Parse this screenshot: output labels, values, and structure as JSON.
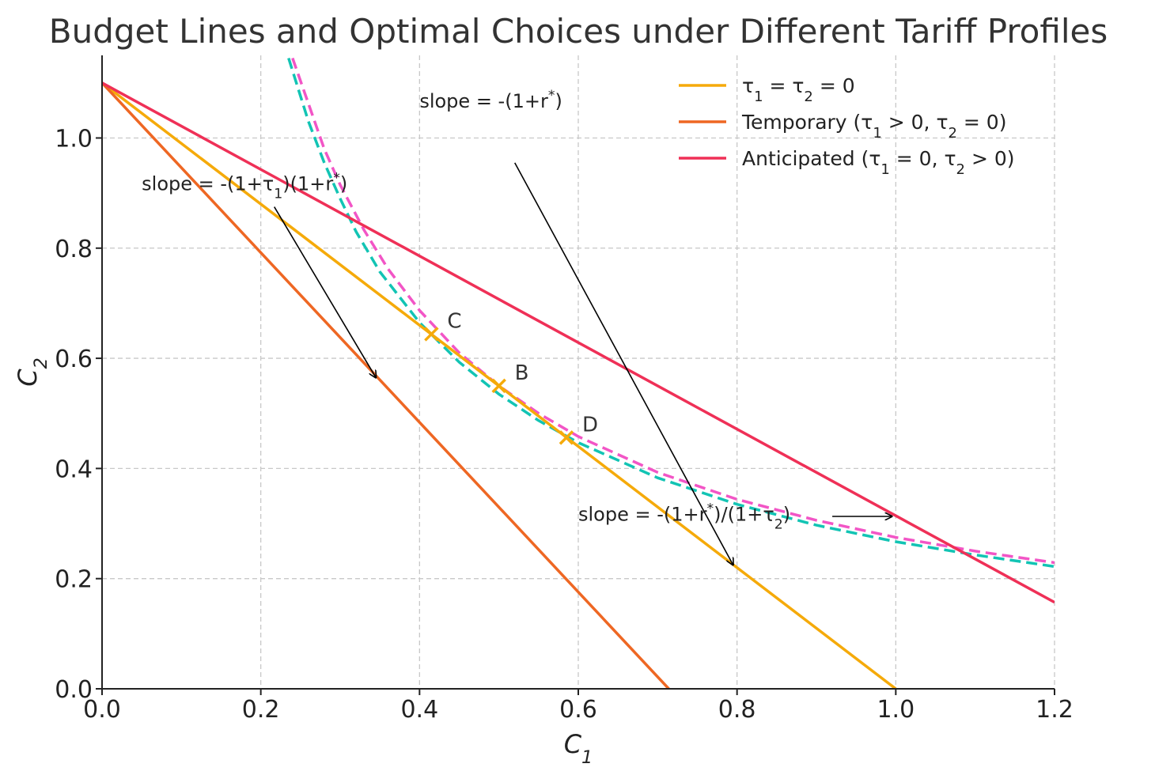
{
  "chart_data": {
    "type": "line",
    "title": "Budget Lines and Optimal Choices under Different Tariff Profiles",
    "xlabel": "C",
    "xlabel_sub": "1",
    "ylabel": "C",
    "ylabel_sub": "2",
    "xlim": [
      0,
      1.2
    ],
    "ylim": [
      0,
      1.15
    ],
    "xticks": [
      0.0,
      0.2,
      0.4,
      0.6,
      0.8,
      1.0,
      1.2
    ],
    "yticks": [
      0.0,
      0.2,
      0.4,
      0.6,
      0.8,
      1.0
    ],
    "xtick_labels": [
      "0.0",
      "0.2",
      "0.4",
      "0.6",
      "0.8",
      "1.0",
      "1.2"
    ],
    "ytick_labels": [
      "0.0",
      "0.2",
      "0.4",
      "0.6",
      "0.8",
      "1.0"
    ],
    "grid": true,
    "legend_position": "top-right",
    "series": [
      {
        "name": "τ₁ = τ₂ = 0",
        "legend_parts": [
          [
            "τ",
            ""
          ],
          [
            "1",
            "sub"
          ],
          [
            " = τ",
            ""
          ],
          [
            "2",
            "sub"
          ],
          [
            " = 0",
            ""
          ]
        ],
        "kind": "line",
        "color": "#f5aa0a",
        "x": [
          0.0,
          1.0
        ],
        "y": [
          1.1,
          0.0
        ]
      },
      {
        "name": "Temporary (τ₁ > 0, τ₂ = 0)",
        "legend_parts": [
          [
            "Temporary (τ",
            ""
          ],
          [
            "1",
            "sub"
          ],
          [
            " > 0, τ",
            ""
          ],
          [
            "2",
            "sub"
          ],
          [
            " = 0)",
            ""
          ]
        ],
        "kind": "line",
        "color": "#ee6723",
        "x": [
          0.0,
          0.714
        ],
        "y": [
          1.1,
          0.0
        ]
      },
      {
        "name": "Anticipated (τ₁ = 0, τ₂ > 0)",
        "legend_parts": [
          [
            "Anticipated (τ",
            ""
          ],
          [
            "1",
            "sub"
          ],
          [
            " = 0, τ",
            ""
          ],
          [
            "2",
            "sub"
          ],
          [
            " > 0)",
            ""
          ]
        ],
        "kind": "line",
        "color": "#ef3057",
        "x": [
          0.0,
          1.2
        ],
        "y": [
          1.1,
          0.157
        ]
      }
    ],
    "indifference_curves": [
      {
        "kind": "dashed",
        "color": "#f255c6",
        "x": [
          0.24,
          0.28,
          0.3,
          0.33,
          0.36,
          0.4,
          0.45,
          0.5,
          0.55,
          0.6,
          0.7,
          0.8,
          0.9,
          1.0,
          1.1,
          1.2
        ],
        "y": [
          1.145,
          0.98,
          0.915,
          0.833,
          0.763,
          0.687,
          0.61,
          0.55,
          0.5,
          0.458,
          0.393,
          0.344,
          0.306,
          0.275,
          0.25,
          0.229
        ]
      },
      {
        "kind": "dashed",
        "color": "#12c4b4",
        "x": [
          0.235,
          0.26,
          0.28,
          0.3,
          0.32,
          0.35,
          0.4,
          0.45,
          0.5,
          0.55,
          0.6,
          0.7,
          0.8,
          0.9,
          1.0,
          1.1,
          1.2
        ],
        "y": [
          1.145,
          1.03,
          0.955,
          0.89,
          0.83,
          0.757,
          0.665,
          0.593,
          0.535,
          0.487,
          0.447,
          0.383,
          0.335,
          0.297,
          0.267,
          0.243,
          0.222
        ]
      }
    ],
    "points": [
      {
        "label": "C",
        "x": 0.415,
        "y": 0.644,
        "color": "#f5aa0a"
      },
      {
        "label": "B",
        "x": 0.5,
        "y": 0.55,
        "color": "#f5aa0a"
      },
      {
        "label": "D",
        "x": 0.585,
        "y": 0.456,
        "color": "#f5aa0a"
      }
    ],
    "annotations": [
      {
        "parts": [
          [
            "slope = -(1+r",
            ""
          ],
          [
            "*",
            "sup"
          ],
          [
            ")",
            ""
          ]
        ],
        "text_x": 0.4,
        "text_y": 1.055,
        "arrow_from": [
          0.52,
          0.955
        ],
        "arrow_to": [
          0.795,
          0.225
        ]
      },
      {
        "parts": [
          [
            "slope = -(1+τ",
            ""
          ],
          [
            "1",
            "sub"
          ],
          [
            ")(1+r",
            ""
          ],
          [
            "*",
            "sup"
          ],
          [
            ")",
            ""
          ]
        ],
        "text_x": 0.05,
        "text_y": 0.905,
        "arrow_from": [
          0.217,
          0.875
        ],
        "arrow_to": [
          0.345,
          0.565
        ]
      },
      {
        "parts": [
          [
            "slope = -(1+r",
            ""
          ],
          [
            "*",
            "sup"
          ],
          [
            ")/(1+τ",
            ""
          ],
          [
            "2",
            "sub"
          ],
          [
            ")",
            ""
          ]
        ],
        "text_x": 0.6,
        "text_y": 0.305,
        "arrow_from": [
          0.92,
          0.313
        ],
        "arrow_to": [
          0.995,
          0.313
        ]
      }
    ]
  }
}
